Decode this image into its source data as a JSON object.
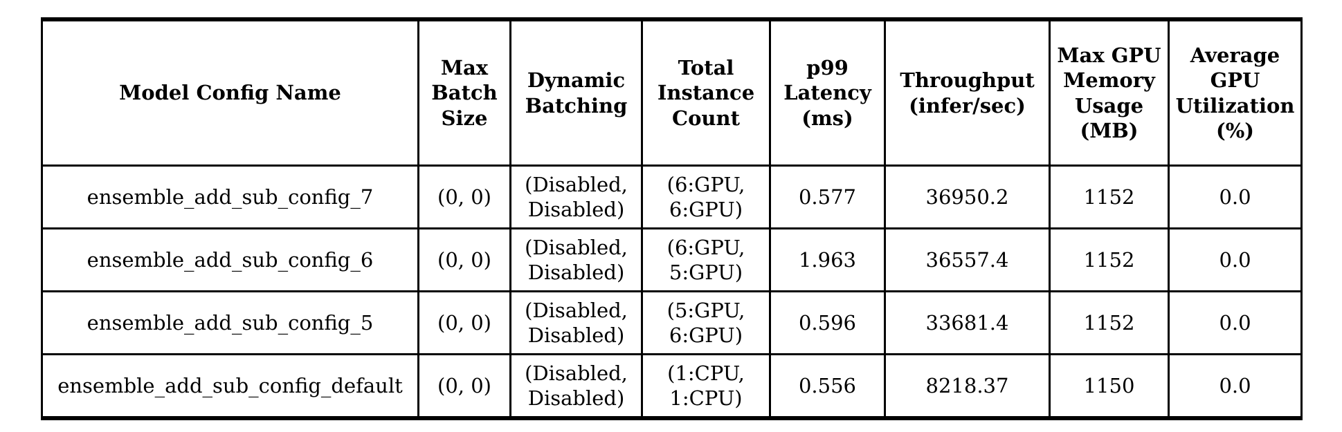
{
  "page": {
    "background_color": "#ffffff",
    "text_color": "#000000",
    "border_color": "#000000"
  },
  "table": {
    "header": [
      "Model Config Name",
      "Max Batch Size",
      "Dynamic Batching",
      "Total Instance Count",
      "p99 Latency (ms)",
      "Throughput (infer/sec)",
      "Max GPU Memory Usage (MB)",
      "Average GPU Utilization (%)"
    ],
    "rows": [
      [
        "ensemble_add_sub_config_7",
        "(0, 0)",
        "(Disabled, Disabled)",
        "(6:GPU, 6:GPU)",
        "0.577",
        "36950.2",
        "1152",
        "0.0"
      ],
      [
        "ensemble_add_sub_config_6",
        "(0, 0)",
        "(Disabled, Disabled)",
        "(6:GPU, 5:GPU)",
        "1.963",
        "36557.4",
        "1152",
        "0.0"
      ],
      [
        "ensemble_add_sub_config_5",
        "(0, 0)",
        "(Disabled, Disabled)",
        "(5:GPU, 6:GPU)",
        "0.596",
        "33681.4",
        "1152",
        "0.0"
      ],
      [
        "ensemble_add_sub_config_default",
        "(0, 0)",
        "(Disabled, Disabled)",
        "(1:CPU, 1:CPU)",
        "0.556",
        "8218.37",
        "1150",
        "0.0"
      ]
    ]
  }
}
